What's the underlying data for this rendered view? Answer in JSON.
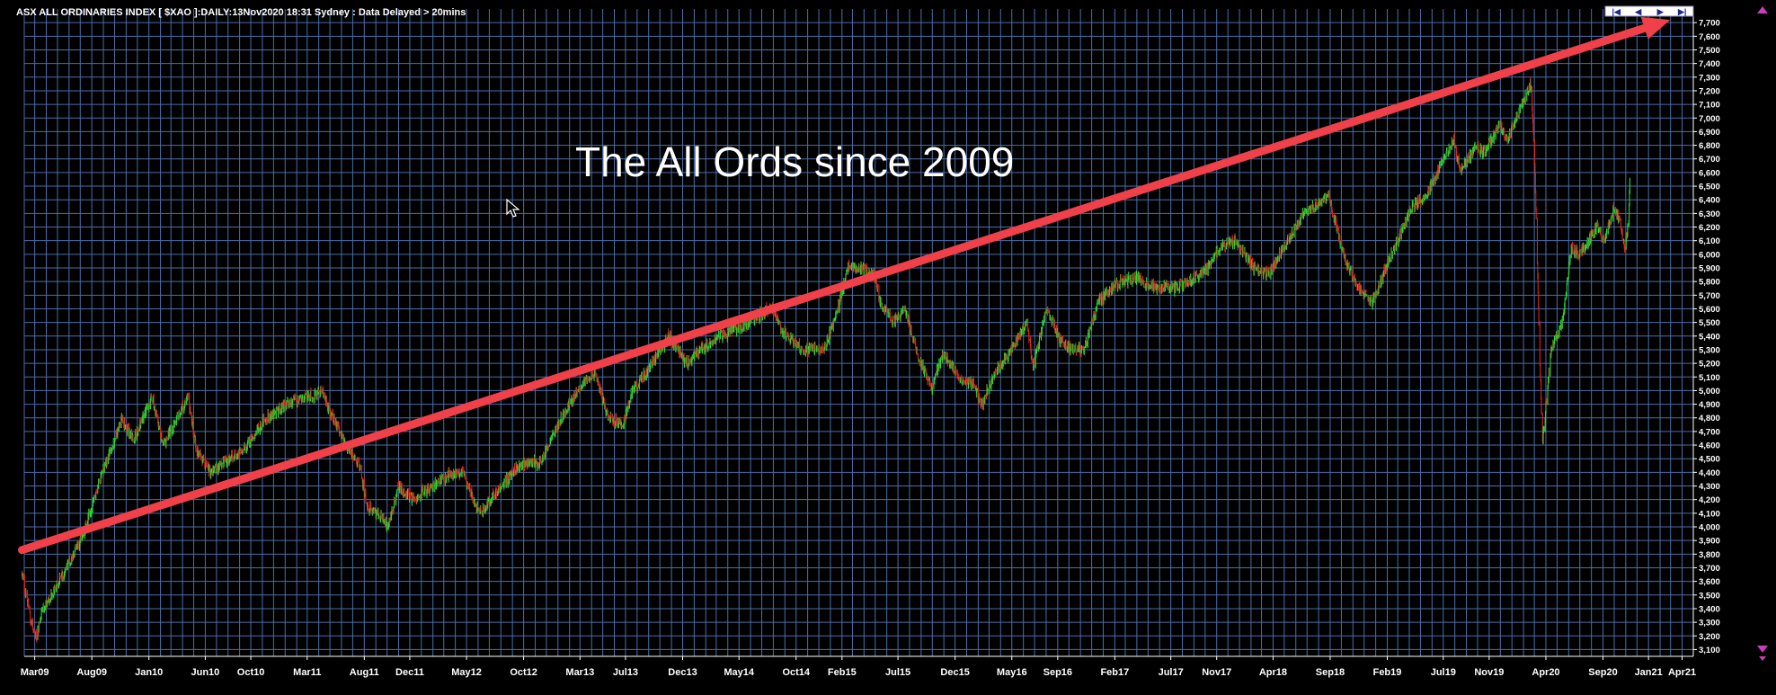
{
  "header": {
    "title": "ASX ALL ORDINARIES INDEX [ $XAO ]:DAILY:13Nov2020 18:31 Sydney : Data Delayed > 20mins"
  },
  "nav_buttons": [
    {
      "icon": "skip-start-icon",
      "glyph": "|◀"
    },
    {
      "icon": "prev-icon",
      "glyph": "◀"
    },
    {
      "icon": "next-icon",
      "glyph": "▶"
    },
    {
      "icon": "skip-end-icon",
      "glyph": "▶|"
    }
  ],
  "colors": {
    "background": "#000000",
    "grid": "#4a6ea8",
    "up": "#22dd33",
    "down": "#dd2222",
    "trend": "#f0404a",
    "text": "#ffffff",
    "scroll_arrow": "#c83cbd"
  },
  "chart_data": {
    "type": "candlestick",
    "title": "ASX ALL ORDINARIES INDEX [ $XAO ]:DAILY:13Nov2020 18:31 Sydney : Data Delayed > 20mins",
    "annotation": "The All Ords since 2009",
    "x_tick_labels": [
      "Mar09",
      "Aug09",
      "Jan10",
      "Jun10",
      "Oct10",
      "Mar11",
      "Aug11",
      "Dec11",
      "May12",
      "Oct12",
      "Mar13",
      "Jul13",
      "Dec13",
      "May14",
      "Oct14",
      "Feb15",
      "Jul15",
      "Dec15",
      "May16",
      "Sep16",
      "Feb17",
      "Jul17",
      "Nov17",
      "Apr18",
      "Sep18",
      "Feb19",
      "Jul19",
      "Nov19",
      "Apr20",
      "Sep20",
      "Jan21",
      "Apr21"
    ],
    "xlim": [
      "2009-02-01",
      "2021-05-01"
    ],
    "ylim": [
      3050,
      7800
    ],
    "y_ticks": [
      3100,
      3200,
      3300,
      3400,
      3500,
      3600,
      3700,
      3800,
      3900,
      4000,
      4100,
      4200,
      4300,
      4400,
      4500,
      4600,
      4700,
      4800,
      4900,
      5000,
      5100,
      5200,
      5300,
      5400,
      5500,
      5600,
      5700,
      5800,
      5900,
      6000,
      6100,
      6200,
      6300,
      6400,
      6500,
      6600,
      6700,
      6800,
      6900,
      7000,
      7100,
      7200,
      7300,
      7400,
      7500,
      7600,
      7700
    ],
    "y_tick_labels": [
      "3,100",
      "3,200",
      "3,300",
      "3,400",
      "3,500",
      "3,600",
      "3,700",
      "3,800",
      "3,900",
      "4,000",
      "4,100",
      "4,200",
      "4,300",
      "4,400",
      "4,500",
      "4,600",
      "4,700",
      "4,800",
      "4,900",
      "5,000",
      "5,100",
      "5,200",
      "5,300",
      "5,400",
      "5,500",
      "5,600",
      "5,700",
      "5,800",
      "5,900",
      "6,000",
      "6,100",
      "6,200",
      "6,300",
      "6,400",
      "6,500",
      "6,600",
      "6,700",
      "6,800",
      "6,900",
      "7,000",
      "7,100",
      "7,200",
      "7,300",
      "7,400",
      "7,500",
      "7,600",
      "7,700"
    ],
    "y_axis_position": "right",
    "grid": true,
    "trend_line": {
      "start": {
        "x": "2009-01-26",
        "y": 3830
      },
      "end": {
        "x": "2021-02-28",
        "y": 7720
      }
    },
    "close_series": {
      "x": [
        "2009-01-26",
        "2009-02-20",
        "2009-03-06",
        "2009-03-20",
        "2009-04-20",
        "2009-05-25",
        "2009-07-10",
        "2009-08-20",
        "2009-10-20",
        "2009-11-20",
        "2010-01-10",
        "2010-02-08",
        "2010-04-15",
        "2010-05-10",
        "2010-06-15",
        "2010-07-10",
        "2010-09-15",
        "2010-11-10",
        "2011-01-20",
        "2011-03-16",
        "2011-04-10",
        "2011-05-20",
        "2011-06-25",
        "2011-07-20",
        "2011-08-09",
        "2011-09-10",
        "2011-10-04",
        "2011-11-01",
        "2011-12-10",
        "2012-01-20",
        "2012-03-15",
        "2012-04-20",
        "2012-05-20",
        "2012-06-05",
        "2012-07-20",
        "2012-09-15",
        "2012-11-15",
        "2013-01-20",
        "2013-03-10",
        "2013-04-10",
        "2013-05-15",
        "2013-06-24",
        "2013-07-20",
        "2013-08-30",
        "2013-10-25",
        "2013-12-10",
        "2014-01-20",
        "2014-03-10",
        "2014-05-15",
        "2014-07-31",
        "2014-08-20",
        "2014-10-16",
        "2014-12-15",
        "2015-01-15",
        "2015-02-20",
        "2015-04-27",
        "2015-05-15",
        "2015-06-20",
        "2015-07-20",
        "2015-08-24",
        "2015-09-29",
        "2015-11-01",
        "2015-12-15",
        "2016-01-20",
        "2016-02-09",
        "2016-03-20",
        "2016-04-20",
        "2016-06-10",
        "2016-06-27",
        "2016-08-01",
        "2016-09-10",
        "2016-10-15",
        "2016-11-09",
        "2016-12-20",
        "2017-02-15",
        "2017-03-30",
        "2017-05-10",
        "2017-06-30",
        "2017-08-20",
        "2017-10-10",
        "2017-11-10",
        "2017-12-20",
        "2018-02-09",
        "2018-03-20",
        "2018-05-10",
        "2018-06-20",
        "2018-08-29",
        "2018-10-11",
        "2018-11-15",
        "2018-12-21",
        "2019-01-20",
        "2019-02-20",
        "2019-04-10",
        "2019-05-20",
        "2019-07-30",
        "2019-08-15",
        "2019-09-20",
        "2019-10-20",
        "2019-11-29",
        "2019-12-20",
        "2020-02-20",
        "2020-03-02",
        "2020-03-09",
        "2020-03-16",
        "2020-03-23",
        "2020-04-15",
        "2020-05-15",
        "2020-06-08",
        "2020-06-30",
        "2020-08-15",
        "2020-09-05",
        "2020-10-01",
        "2020-10-15",
        "2020-10-30",
        "2020-11-09",
        "2020-11-13"
      ],
      "y": [
        3650,
        3300,
        3180,
        3380,
        3520,
        3700,
        3950,
        4320,
        4800,
        4640,
        4950,
        4600,
        4950,
        4550,
        4400,
        4450,
        4580,
        4800,
        4920,
        4960,
        4990,
        4740,
        4550,
        4440,
        4150,
        4100,
        4000,
        4290,
        4200,
        4280,
        4380,
        4400,
        4200,
        4100,
        4250,
        4450,
        4480,
        4850,
        5050,
        5130,
        4800,
        4750,
        5000,
        5150,
        5400,
        5200,
        5300,
        5400,
        5480,
        5620,
        5450,
        5300,
        5300,
        5550,
        5930,
        5850,
        5650,
        5500,
        5600,
        5250,
        5030,
        5280,
        5080,
        5050,
        4900,
        5150,
        5250,
        5500,
        5170,
        5600,
        5350,
        5300,
        5300,
        5650,
        5800,
        5830,
        5770,
        5750,
        5800,
        5900,
        6050,
        6100,
        5900,
        5850,
        6100,
        6300,
        6420,
        5950,
        5750,
        5650,
        5850,
        6050,
        6350,
        6450,
        6850,
        6600,
        6770,
        6750,
        6950,
        6850,
        7250,
        6700,
        5900,
        5200,
        4620,
        5300,
        5500,
        6050,
        6000,
        6200,
        6100,
        6350,
        6250,
        6050,
        6250,
        6620
      ]
    }
  }
}
